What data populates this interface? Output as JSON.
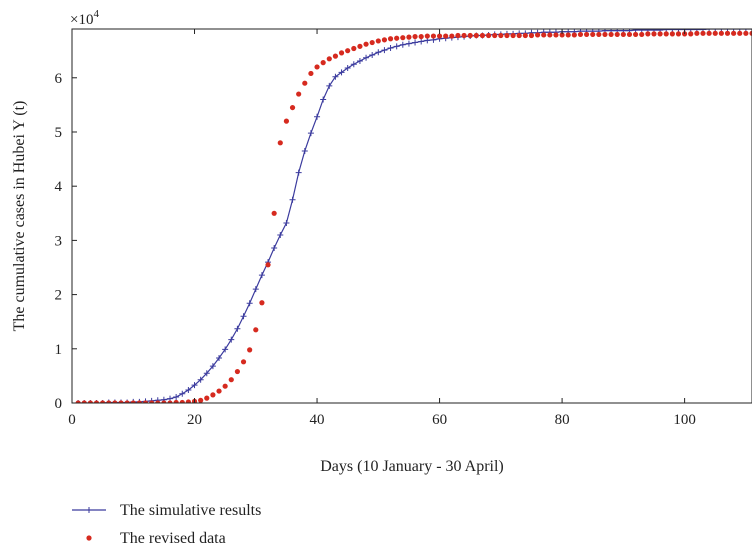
{
  "chart_data": {
    "type": "line",
    "title": "",
    "xlabel": "Days (10 January - 30 April)",
    "ylabel": "The cumulative cases in Hubei Y (t)",
    "y_multiplier_label": "×10",
    "y_multiplier_exponent": "4",
    "xlim": [
      0,
      111
    ],
    "ylim": [
      0,
      6.9
    ],
    "x_ticks": [
      0,
      20,
      40,
      60,
      80,
      100
    ],
    "y_ticks": [
      0,
      1,
      2,
      3,
      4,
      5,
      6
    ],
    "grid": false,
    "legend_position": "bottom-left",
    "series": [
      {
        "name": "The simulative results",
        "style": "line-plus",
        "color": "#3b3b9e",
        "x": [
          1,
          2,
          3,
          4,
          5,
          6,
          7,
          8,
          9,
          10,
          11,
          12,
          13,
          14,
          15,
          16,
          17,
          18,
          19,
          20,
          21,
          22,
          23,
          24,
          25,
          26,
          27,
          28,
          29,
          30,
          31,
          32,
          33,
          34,
          35,
          36,
          37,
          38,
          39,
          40,
          41,
          42,
          43,
          44,
          45,
          46,
          47,
          48,
          49,
          50,
          51,
          52,
          53,
          54,
          55,
          56,
          57,
          58,
          59,
          60,
          61,
          62,
          63,
          64,
          65,
          66,
          67,
          68,
          69,
          70,
          71,
          72,
          73,
          74,
          75,
          76,
          77,
          78,
          79,
          80,
          81,
          82,
          83,
          84,
          85,
          86,
          87,
          88,
          89,
          90,
          91,
          92,
          93,
          94,
          95,
          96,
          97,
          98,
          99,
          100,
          101,
          102,
          103,
          104,
          105,
          106,
          107,
          108,
          109,
          110,
          111
        ],
        "values": [
          0,
          0,
          0,
          0,
          0,
          0.01,
          0.01,
          0.01,
          0.01,
          0.02,
          0.02,
          0.03,
          0.04,
          0.05,
          0.06,
          0.08,
          0.11,
          0.17,
          0.24,
          0.33,
          0.43,
          0.55,
          0.68,
          0.83,
          0.99,
          1.17,
          1.37,
          1.6,
          1.84,
          2.1,
          2.36,
          2.6,
          2.86,
          3.1,
          3.32,
          3.75,
          4.25,
          4.65,
          4.98,
          5.28,
          5.6,
          5.85,
          6.02,
          6.1,
          6.18,
          6.25,
          6.31,
          6.37,
          6.42,
          6.47,
          6.51,
          6.55,
          6.58,
          6.61,
          6.63,
          6.65,
          6.67,
          6.69,
          6.7,
          6.72,
          6.73,
          6.74,
          6.75,
          6.76,
          6.77,
          6.78,
          6.78,
          6.79,
          6.8,
          6.8,
          6.81,
          6.81,
          6.82,
          6.82,
          6.83,
          6.83,
          6.84,
          6.84,
          6.84,
          6.85,
          6.85,
          6.85,
          6.86,
          6.86,
          6.86,
          6.86,
          6.87,
          6.87,
          6.87,
          6.87,
          6.87,
          6.88,
          6.88,
          6.88,
          6.88,
          6.88,
          6.89,
          6.89,
          6.89,
          6.89,
          6.89,
          6.89,
          6.89,
          6.9,
          6.9,
          6.9,
          6.9,
          6.9,
          6.9,
          6.9,
          6.9
        ]
      },
      {
        "name": "The revised data",
        "style": "dots",
        "color": "#d62a1f",
        "x": [
          1,
          2,
          3,
          4,
          5,
          6,
          7,
          8,
          9,
          10,
          11,
          12,
          13,
          14,
          15,
          16,
          17,
          18,
          19,
          20,
          21,
          22,
          23,
          24,
          25,
          26,
          27,
          28,
          29,
          30,
          31,
          32,
          33,
          34,
          35,
          36,
          37,
          38,
          39,
          40,
          41,
          42,
          43,
          44,
          45,
          46,
          47,
          48,
          49,
          50,
          51,
          52,
          53,
          54,
          55,
          56,
          57,
          58,
          59,
          60,
          61,
          62,
          63,
          64,
          65,
          66,
          67,
          68,
          69,
          70,
          71,
          72,
          73,
          74,
          75,
          76,
          77,
          78,
          79,
          80,
          81,
          82,
          83,
          84,
          85,
          86,
          87,
          88,
          89,
          90,
          91,
          92,
          93,
          94,
          95,
          96,
          97,
          98,
          99,
          100,
          101,
          102,
          103,
          104,
          105,
          106,
          107,
          108,
          109,
          110,
          111
        ],
        "values": [
          0,
          0,
          0,
          0,
          0,
          0,
          0,
          0,
          0,
          0,
          0,
          0,
          0,
          0,
          0,
          0,
          0.01,
          0.01,
          0.02,
          0.03,
          0.05,
          0.09,
          0.15,
          0.22,
          0.31,
          0.43,
          0.58,
          0.76,
          0.98,
          1.35,
          1.85,
          2.55,
          3.5,
          4.8,
          5.2,
          5.45,
          5.7,
          5.9,
          6.08,
          6.2,
          6.28,
          6.35,
          6.4,
          6.46,
          6.5,
          6.54,
          6.58,
          6.62,
          6.65,
          6.68,
          6.7,
          6.72,
          6.73,
          6.74,
          6.75,
          6.76,
          6.76,
          6.77,
          6.77,
          6.77,
          6.77,
          6.77,
          6.78,
          6.78,
          6.78,
          6.78,
          6.78,
          6.78,
          6.78,
          6.78,
          6.78,
          6.78,
          6.78,
          6.78,
          6.78,
          6.79,
          6.79,
          6.79,
          6.79,
          6.79,
          6.79,
          6.79,
          6.8,
          6.8,
          6.8,
          6.8,
          6.8,
          6.8,
          6.8,
          6.8,
          6.8,
          6.8,
          6.8,
          6.81,
          6.81,
          6.81,
          6.81,
          6.81,
          6.81,
          6.81,
          6.81,
          6.82,
          6.82,
          6.82,
          6.82,
          6.82,
          6.82,
          6.82,
          6.82,
          6.82,
          6.82
        ]
      }
    ]
  }
}
